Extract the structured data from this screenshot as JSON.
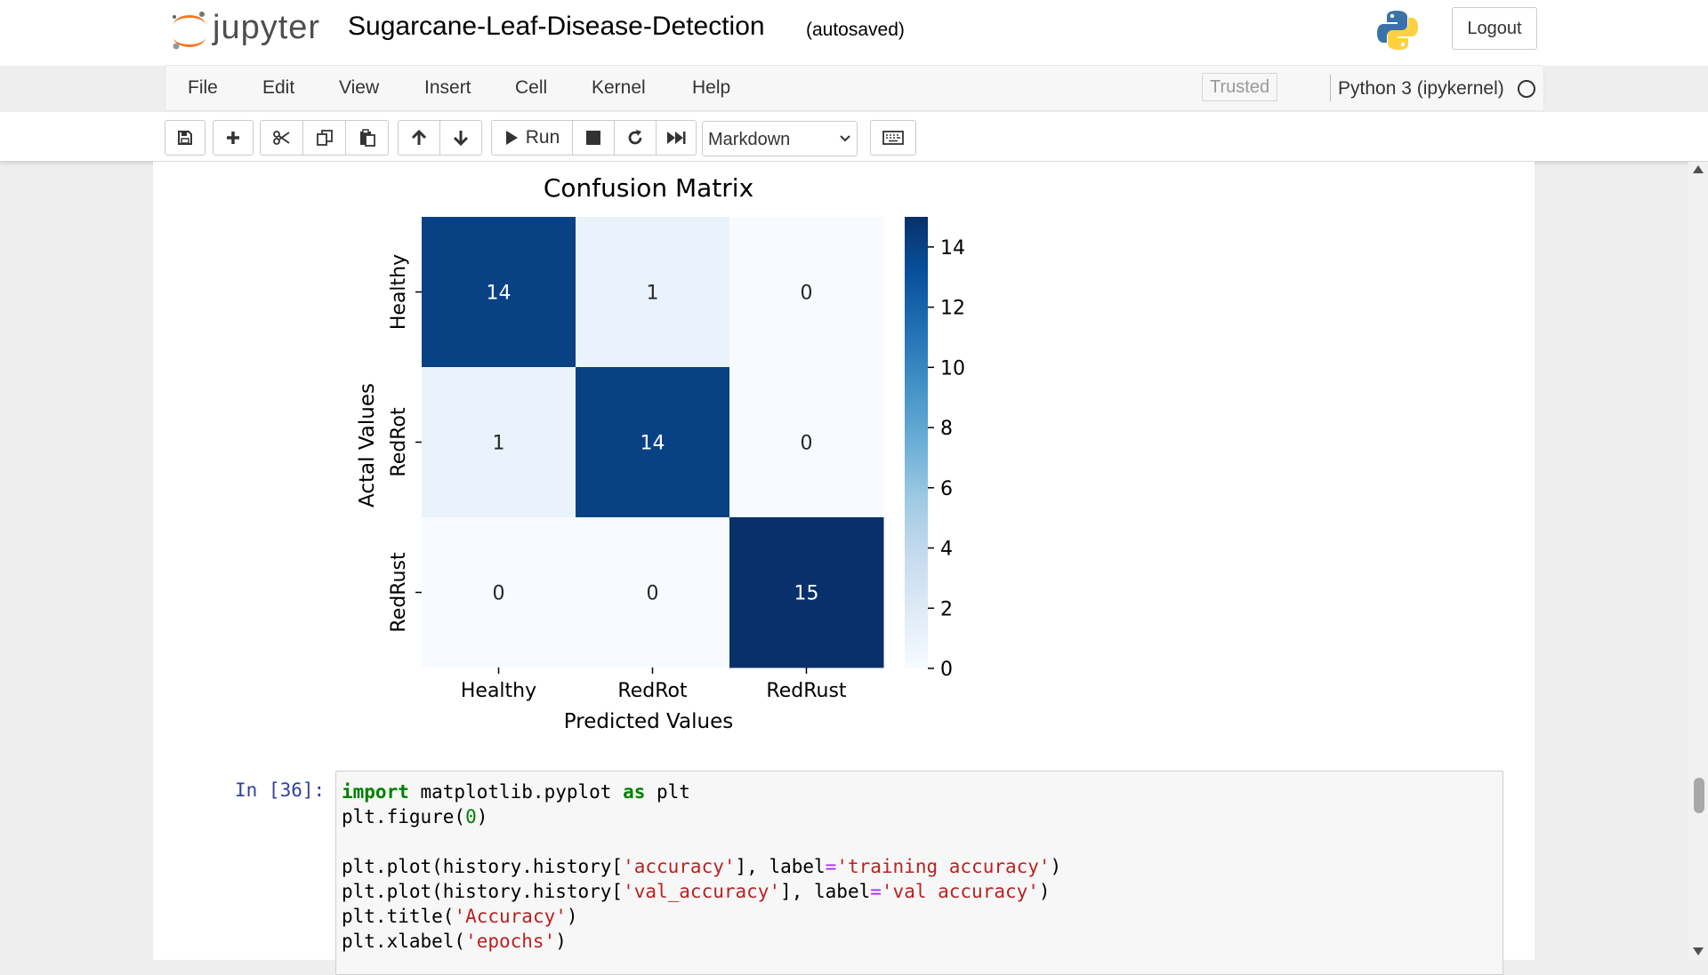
{
  "header": {
    "logo_text": "jupyter",
    "notebook_title": "Sugarcane-Leaf-Disease-Detection",
    "autosave_status": "(autosaved)",
    "logout_label": "Logout"
  },
  "menubar": {
    "items": [
      "File",
      "Edit",
      "View",
      "Insert",
      "Cell",
      "Kernel",
      "Help"
    ],
    "trusted_label": "Trusted",
    "kernel_name": "Python 3 (ipykernel)"
  },
  "toolbar": {
    "run_label": "Run",
    "cell_type": "Markdown"
  },
  "chart_data": {
    "type": "heatmap",
    "title": "Confusion Matrix",
    "xlabel": "Predicted Values",
    "ylabel": "Actal Values",
    "x_categories": [
      "Healthy",
      "RedRot",
      "RedRust"
    ],
    "y_categories": [
      "Healthy",
      "RedRot",
      "RedRust"
    ],
    "values": [
      [
        14,
        1,
        0
      ],
      [
        1,
        14,
        0
      ],
      [
        0,
        0,
        15
      ]
    ],
    "colormap": "Blues",
    "colorbar_range": [
      0,
      15
    ],
    "colorbar_ticks": [
      "0",
      "2",
      "4",
      "6",
      "8",
      "10",
      "12",
      "14"
    ]
  },
  "code_cell": {
    "prompt": "In [36]:",
    "lines": [
      "import matplotlib.pyplot as plt",
      "plt.figure(0)",
      "",
      "plt.plot(history.history['accuracy'], label='training accuracy')",
      "plt.plot(history.history['val_accuracy'], label='val accuracy')",
      "plt.title('Accuracy')",
      "plt.xlabel('epochs')"
    ]
  },
  "colors": {
    "jupyter_orange": "#F37726",
    "prompt_blue": "#303F9F",
    "keyword_green": "#008000",
    "string_red": "#BA2121",
    "operator_purple": "#AA22FF"
  }
}
